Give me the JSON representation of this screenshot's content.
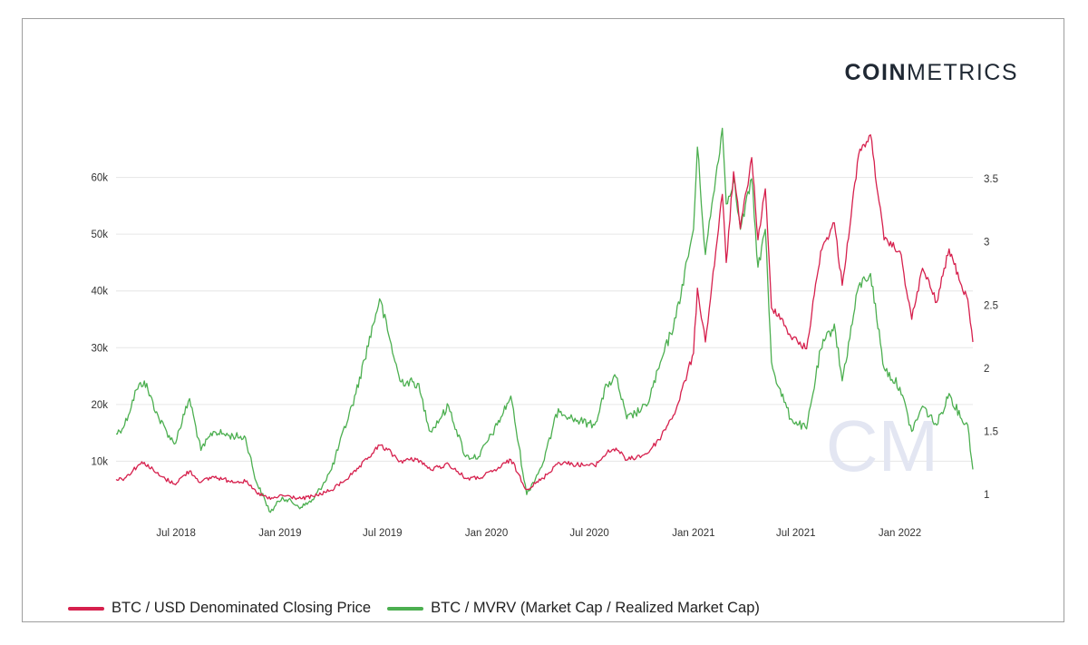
{
  "brand": {
    "bold": "COIN",
    "light": "METRICS",
    "watermark": "CM"
  },
  "colors": {
    "price": "#d6204d",
    "mvrv": "#4caf50",
    "grid": "#e6e6e6",
    "watermark": "#e3e6f2"
  },
  "chart_data": {
    "type": "line",
    "title": "",
    "xlabel": "",
    "ylabel": "",
    "x_ticks": [
      "Jul 2018",
      "Jan 2019",
      "Jul 2019",
      "Jan 2020",
      "Jul 2020",
      "Jan 2021",
      "Jul 2021",
      "Jan 2022"
    ],
    "y_left_ticks": [
      "10k",
      "20k",
      "30k",
      "40k",
      "50k",
      "60k"
    ],
    "y_right_ticks": [
      "1",
      "1.5",
      "2",
      "2.5",
      "3",
      "3.5"
    ],
    "x_range": [
      "2018-03-17",
      "2022-05-10"
    ],
    "y_left_range": [
      0,
      70000
    ],
    "y_right_range": [
      0.815,
      3.96
    ],
    "grid": true,
    "legend_position": "bottom-left",
    "series": [
      {
        "name": "BTC / USD Denominated Closing Price",
        "axis": "left",
        "color": "#d6204d",
        "points": [
          [
            "2018-03-17",
            6800
          ],
          [
            "2018-04-01",
            7000
          ],
          [
            "2018-04-25",
            9300
          ],
          [
            "2018-05-06",
            9800
          ],
          [
            "2018-06-01",
            7500
          ],
          [
            "2018-06-28",
            6000
          ],
          [
            "2018-07-25",
            8300
          ],
          [
            "2018-08-14",
            6300
          ],
          [
            "2018-09-05",
            7300
          ],
          [
            "2018-10-01",
            6600
          ],
          [
            "2018-11-01",
            6400
          ],
          [
            "2018-11-20",
            4500
          ],
          [
            "2018-12-15",
            3300
          ],
          [
            "2019-01-05",
            4000
          ],
          [
            "2019-02-07",
            3400
          ],
          [
            "2019-03-01",
            3800
          ],
          [
            "2019-04-02",
            4900
          ],
          [
            "2019-05-15",
            8200
          ],
          [
            "2019-06-26",
            12800
          ],
          [
            "2019-07-10",
            12000
          ],
          [
            "2019-08-01",
            10000
          ],
          [
            "2019-09-01",
            10400
          ],
          [
            "2019-09-24",
            8500
          ],
          [
            "2019-10-26",
            9500
          ],
          [
            "2019-11-25",
            7000
          ],
          [
            "2019-12-18",
            7000
          ],
          [
            "2020-01-20",
            8600
          ],
          [
            "2020-02-13",
            10300
          ],
          [
            "2020-03-12",
            5000
          ],
          [
            "2020-04-10",
            7000
          ],
          [
            "2020-05-07",
            9800
          ],
          [
            "2020-06-01",
            9500
          ],
          [
            "2020-07-10",
            9200
          ],
          [
            "2020-08-01",
            11500
          ],
          [
            "2020-08-17",
            12300
          ],
          [
            "2020-09-05",
            10200
          ],
          [
            "2020-10-10",
            11300
          ],
          [
            "2020-11-01",
            13800
          ],
          [
            "2020-12-01",
            19000
          ],
          [
            "2021-01-01",
            29000
          ],
          [
            "2021-01-08",
            40500
          ],
          [
            "2021-01-22",
            31000
          ],
          [
            "2021-02-21",
            57000
          ],
          [
            "2021-02-28",
            45000
          ],
          [
            "2021-03-13",
            61000
          ],
          [
            "2021-03-25",
            51000
          ],
          [
            "2021-04-14",
            63500
          ],
          [
            "2021-04-25",
            49000
          ],
          [
            "2021-05-08",
            58000
          ],
          [
            "2021-05-19",
            37000
          ],
          [
            "2021-06-01",
            36000
          ],
          [
            "2021-06-22",
            32000
          ],
          [
            "2021-07-20",
            29800
          ],
          [
            "2021-08-14",
            47000
          ],
          [
            "2021-09-07",
            52000
          ],
          [
            "2021-09-21",
            41000
          ],
          [
            "2021-10-20",
            64000
          ],
          [
            "2021-11-10",
            67500
          ],
          [
            "2021-12-04",
            49000
          ],
          [
            "2022-01-01",
            47000
          ],
          [
            "2022-01-22",
            35000
          ],
          [
            "2022-02-10",
            44000
          ],
          [
            "2022-03-07",
            38000
          ],
          [
            "2022-03-29",
            47400
          ],
          [
            "2022-04-20",
            41000
          ],
          [
            "2022-05-01",
            38500
          ],
          [
            "2022-05-10",
            31000
          ]
        ]
      },
      {
        "name": "BTC / MVRV (Market Cap / Realized Market Cap)",
        "axis": "right",
        "color": "#4caf50",
        "points": [
          [
            "2018-03-17",
            1.48
          ],
          [
            "2018-04-01",
            1.55
          ],
          [
            "2018-04-22",
            1.83
          ],
          [
            "2018-05-06",
            1.9
          ],
          [
            "2018-06-01",
            1.6
          ],
          [
            "2018-06-28",
            1.4
          ],
          [
            "2018-07-25",
            1.76
          ],
          [
            "2018-08-14",
            1.35
          ],
          [
            "2018-09-05",
            1.5
          ],
          [
            "2018-10-01",
            1.47
          ],
          [
            "2018-11-01",
            1.45
          ],
          [
            "2018-11-20",
            1.1
          ],
          [
            "2018-12-15",
            0.86
          ],
          [
            "2019-01-05",
            0.98
          ],
          [
            "2019-02-07",
            0.9
          ],
          [
            "2019-03-01",
            0.96
          ],
          [
            "2019-04-02",
            1.2
          ],
          [
            "2019-05-15",
            1.8
          ],
          [
            "2019-06-26",
            2.55
          ],
          [
            "2019-07-10",
            2.3
          ],
          [
            "2019-08-01",
            1.9
          ],
          [
            "2019-09-01",
            1.88
          ],
          [
            "2019-09-24",
            1.5
          ],
          [
            "2019-10-26",
            1.7
          ],
          [
            "2019-11-25",
            1.3
          ],
          [
            "2019-12-18",
            1.3
          ],
          [
            "2020-01-20",
            1.55
          ],
          [
            "2020-02-13",
            1.78
          ],
          [
            "2020-03-12",
            1.0
          ],
          [
            "2020-04-10",
            1.25
          ],
          [
            "2020-05-07",
            1.68
          ],
          [
            "2020-06-01",
            1.6
          ],
          [
            "2020-07-10",
            1.55
          ],
          [
            "2020-08-01",
            1.87
          ],
          [
            "2020-08-17",
            1.93
          ],
          [
            "2020-09-05",
            1.6
          ],
          [
            "2020-10-10",
            1.7
          ],
          [
            "2020-11-01",
            2.0
          ],
          [
            "2020-12-01",
            2.4
          ],
          [
            "2021-01-01",
            3.1
          ],
          [
            "2021-01-08",
            3.75
          ],
          [
            "2021-01-22",
            2.9
          ],
          [
            "2021-02-21",
            3.9
          ],
          [
            "2021-02-28",
            3.3
          ],
          [
            "2021-03-13",
            3.5
          ],
          [
            "2021-03-25",
            3.1
          ],
          [
            "2021-04-14",
            3.5
          ],
          [
            "2021-04-25",
            2.8
          ],
          [
            "2021-05-08",
            3.1
          ],
          [
            "2021-05-19",
            2.05
          ],
          [
            "2021-06-01",
            1.85
          ],
          [
            "2021-06-22",
            1.6
          ],
          [
            "2021-07-20",
            1.52
          ],
          [
            "2021-08-14",
            2.15
          ],
          [
            "2021-09-07",
            2.35
          ],
          [
            "2021-09-21",
            1.9
          ],
          [
            "2021-10-20",
            2.65
          ],
          [
            "2021-11-10",
            2.75
          ],
          [
            "2021-12-04",
            2.0
          ],
          [
            "2022-01-01",
            1.85
          ],
          [
            "2022-01-22",
            1.5
          ],
          [
            "2022-02-10",
            1.7
          ],
          [
            "2022-03-07",
            1.55
          ],
          [
            "2022-03-29",
            1.8
          ],
          [
            "2022-04-20",
            1.6
          ],
          [
            "2022-05-01",
            1.55
          ],
          [
            "2022-05-10",
            1.2
          ]
        ]
      }
    ]
  }
}
